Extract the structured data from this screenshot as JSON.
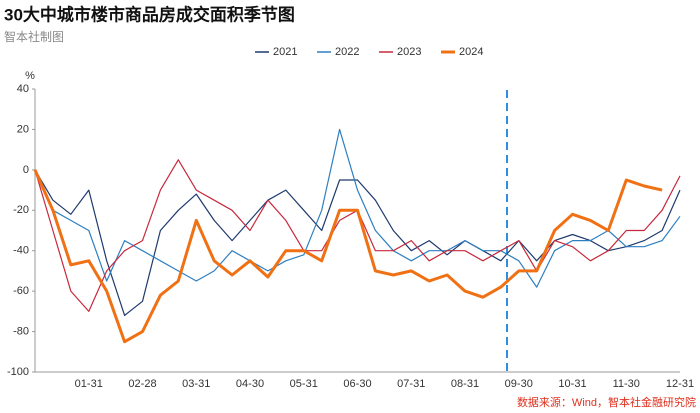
{
  "chart_data": {
    "type": "line",
    "title": "30大中城市楼市商品房成交面积季节图",
    "subtitle": "智本社制图",
    "y_label": "%",
    "source": "数据来源：Wind，智本社金融研究院",
    "categories": [
      null,
      null,
      null,
      "01-31",
      null,
      null,
      "02-28",
      null,
      null,
      "03-31",
      null,
      null,
      "04-30",
      null,
      null,
      "05-31",
      null,
      null,
      "06-30",
      null,
      null,
      "07-31",
      null,
      null,
      "08-31",
      null,
      null,
      "09-30",
      null,
      null,
      "10-31",
      null,
      null,
      "11-30",
      null,
      null,
      "12-31"
    ],
    "ylim": [
      -100,
      40
    ],
    "yticks": [
      40,
      20,
      0,
      -20,
      -40,
      -60,
      -80,
      -100
    ],
    "grid": false,
    "legend": "top",
    "series": [
      {
        "name": "2021",
        "color": "#1f3a6e",
        "values": [
          0,
          -15,
          -22,
          -10,
          -45,
          -72,
          -65,
          -30,
          -20,
          -12,
          -25,
          -35,
          -25,
          -15,
          -10,
          -20,
          -30,
          -5,
          -5,
          -15,
          -30,
          -40,
          -35,
          -42,
          -35,
          -40,
          -45,
          -35,
          -45,
          -35,
          -32,
          -35,
          -40,
          -38,
          -35,
          -30,
          -10
        ]
      },
      {
        "name": "2022",
        "color": "#2e7fc0",
        "values": [
          0,
          -20,
          -25,
          -30,
          -55,
          -35,
          -40,
          -45,
          -50,
          -55,
          -50,
          -40,
          -45,
          -50,
          -45,
          -42,
          -20,
          20,
          -10,
          -30,
          -40,
          -45,
          -40,
          -40,
          -35,
          -40,
          -40,
          -45,
          -58,
          -40,
          -35,
          -35,
          -30,
          -38,
          -38,
          -35,
          -23
        ]
      },
      {
        "name": "2023",
        "color": "#c8283c",
        "values": [
          0,
          -30,
          -60,
          -70,
          -50,
          -40,
          -35,
          -10,
          5,
          -10,
          -15,
          -20,
          -30,
          -15,
          -25,
          -40,
          -40,
          -25,
          -20,
          -40,
          -40,
          -35,
          -45,
          -40,
          -40,
          -45,
          -40,
          -35,
          -50,
          -35,
          -38,
          -45,
          -40,
          -30,
          -30,
          -20,
          -3
        ]
      },
      {
        "name": "2024",
        "color": "#f07014",
        "values": [
          0,
          -20,
          -47,
          -45,
          -60,
          -85,
          -80,
          -62,
          -55,
          -25,
          -45,
          -52,
          -45,
          -53,
          -40,
          -40,
          -45,
          -20,
          -20,
          -50,
          -52,
          -50,
          -55,
          -52,
          -60,
          -63,
          -58,
          -50,
          -50,
          -30,
          -22,
          -25,
          -30,
          -5,
          -8,
          -10,
          null
        ]
      }
    ]
  }
}
